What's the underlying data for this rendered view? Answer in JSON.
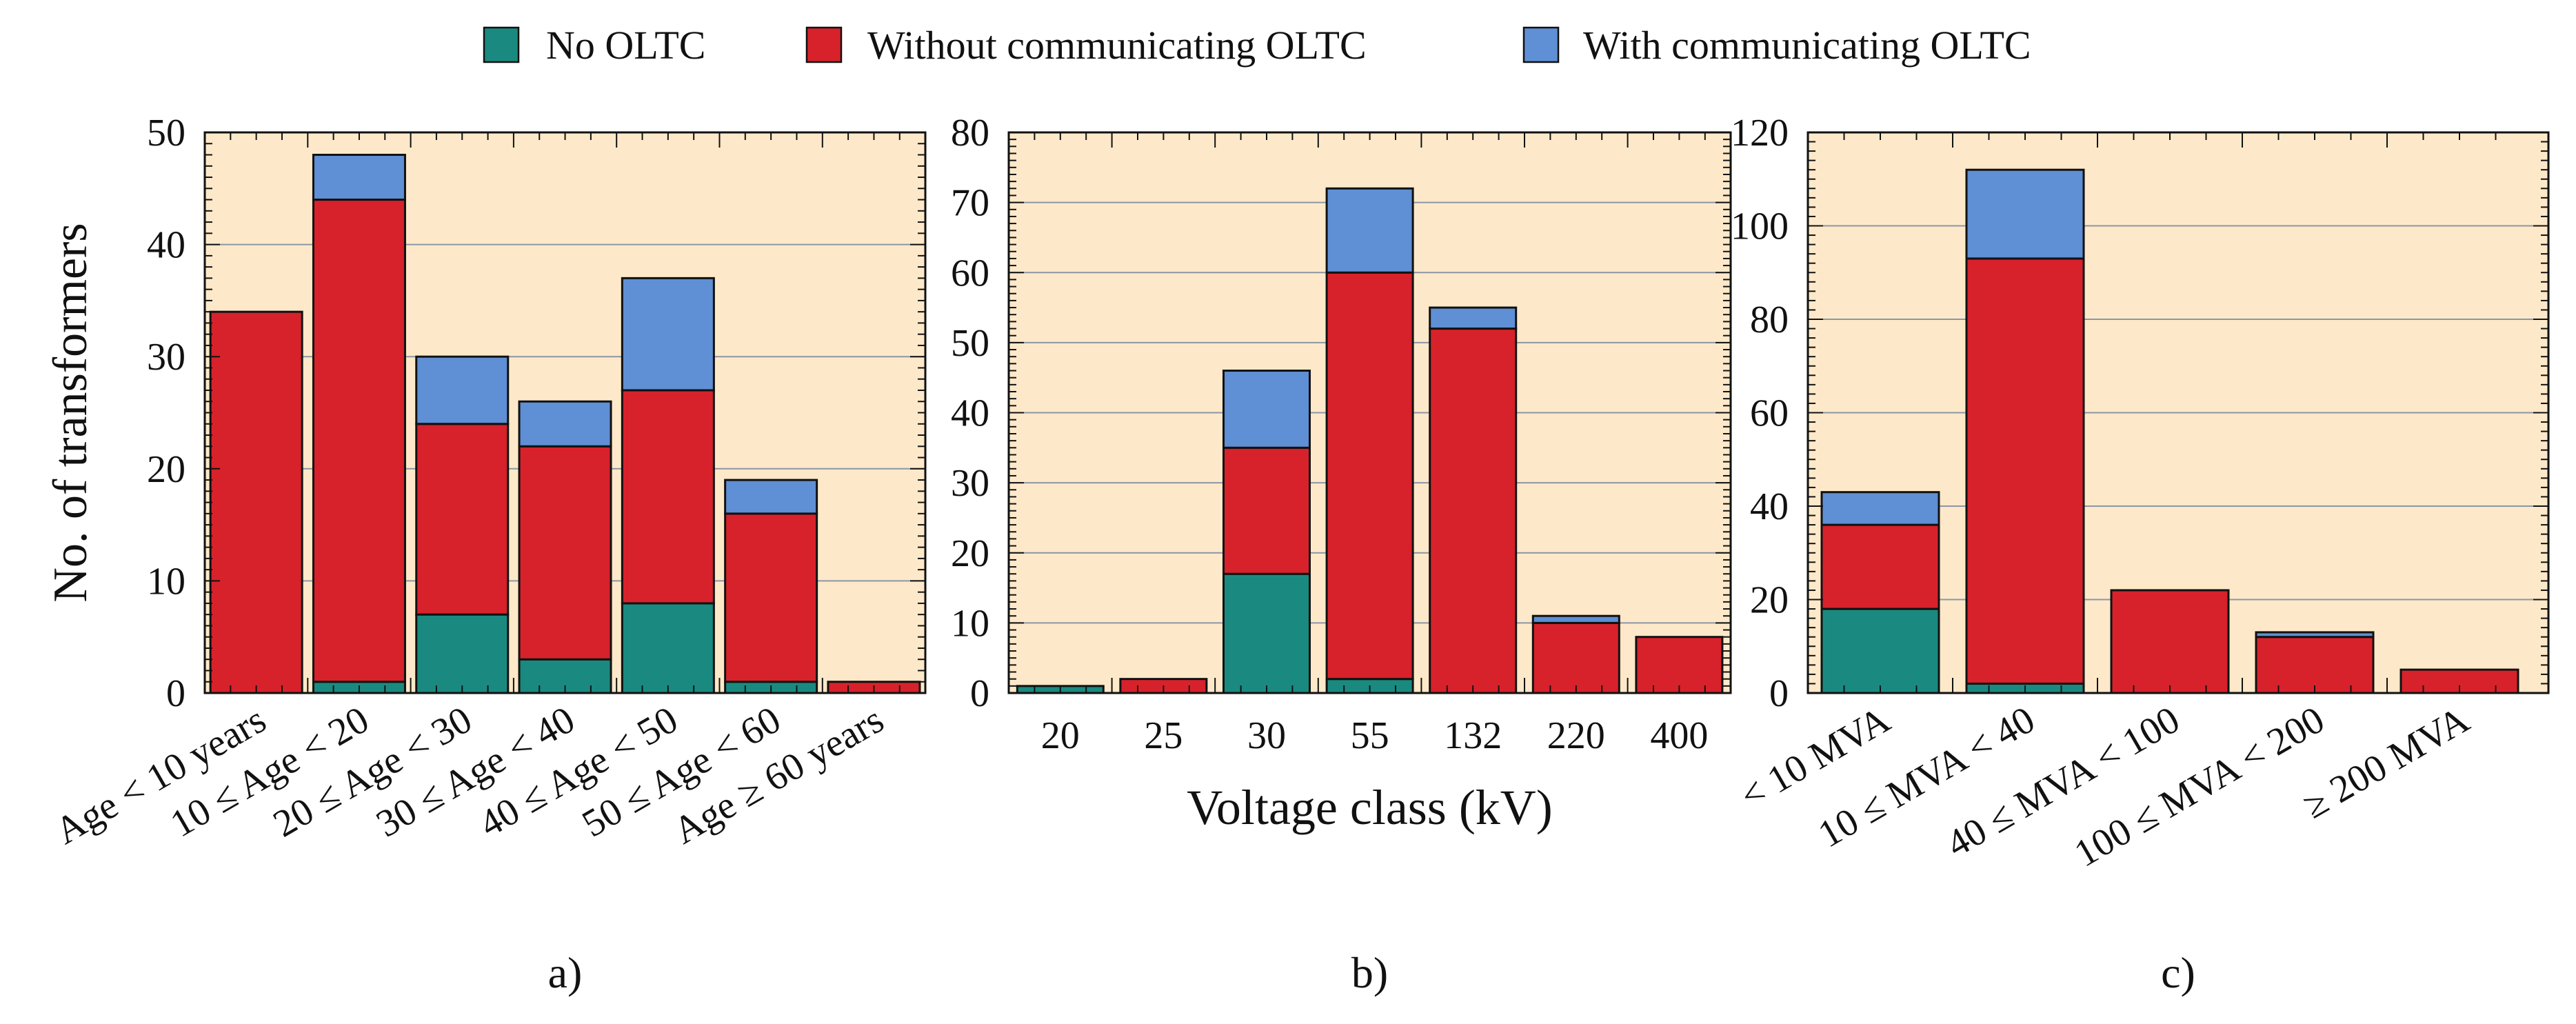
{
  "legend": {
    "items": [
      {
        "label": "No OLTC",
        "color": "#1a8a80"
      },
      {
        "label": "Without communicating OLTC",
        "color": "#d7222b"
      },
      {
        "label": "With communicating OLTC",
        "color": "#5f8fd4"
      }
    ]
  },
  "style": {
    "plot_background": "#fde9c9",
    "gridline_color": "#8c96a6",
    "bar_outline": "#111111"
  },
  "chart_data": [
    {
      "type": "bar",
      "stacked": true,
      "panel_label": "a)",
      "title": "",
      "xlabel": "",
      "ylabel": "No. of transformers",
      "ylim": [
        0,
        50
      ],
      "yticks": [
        0,
        10,
        20,
        30,
        40,
        50
      ],
      "categories": [
        "Age < 10 years",
        "10 ≤ Age < 20",
        "20 ≤ Age < 30",
        "30 ≤ Age < 40",
        "40 ≤ Age < 50",
        "50 ≤ Age < 60",
        "Age ≥ 60 years"
      ],
      "series": [
        {
          "name": "No OLTC",
          "values": [
            0,
            1,
            7,
            3,
            8,
            1,
            0
          ]
        },
        {
          "name": "Without communicating OLTC",
          "values": [
            34,
            43,
            17,
            19,
            19,
            15,
            1
          ]
        },
        {
          "name": "With communicating OLTC",
          "values": [
            0,
            4,
            6,
            4,
            10,
            3,
            0
          ]
        }
      ]
    },
    {
      "type": "bar",
      "stacked": true,
      "panel_label": "b)",
      "title": "",
      "xlabel": "Voltage class (kV)",
      "ylabel": "",
      "ylim": [
        0,
        80
      ],
      "yticks": [
        0,
        10,
        20,
        30,
        40,
        50,
        60,
        70,
        80
      ],
      "categories": [
        "20",
        "25",
        "30",
        "55",
        "132",
        "220",
        "400"
      ],
      "series": [
        {
          "name": "No OLTC",
          "values": [
            1,
            0,
            17,
            2,
            0,
            0,
            0
          ]
        },
        {
          "name": "Without communicating OLTC",
          "values": [
            0,
            2,
            18,
            58,
            52,
            10,
            8
          ]
        },
        {
          "name": "With communicating OLTC",
          "values": [
            0,
            0,
            11,
            12,
            3,
            1,
            0
          ]
        }
      ]
    },
    {
      "type": "bar",
      "stacked": true,
      "panel_label": "c)",
      "title": "",
      "xlabel": "",
      "ylabel": "",
      "ylim": [
        0,
        120
      ],
      "yticks": [
        0,
        20,
        40,
        60,
        80,
        100,
        120
      ],
      "categories": [
        "< 10 MVA",
        "10 ≤ MVA < 40",
        "40 ≤ MVA < 100",
        "100 ≤ MVA < 200",
        "≥ 200 MVA"
      ],
      "series": [
        {
          "name": "No OLTC",
          "values": [
            18,
            2,
            0,
            0,
            0
          ]
        },
        {
          "name": "Without communicating OLTC",
          "values": [
            18,
            91,
            22,
            12,
            5
          ]
        },
        {
          "name": "With communicating OLTC",
          "values": [
            7,
            19,
            0,
            1,
            0
          ]
        }
      ]
    }
  ]
}
